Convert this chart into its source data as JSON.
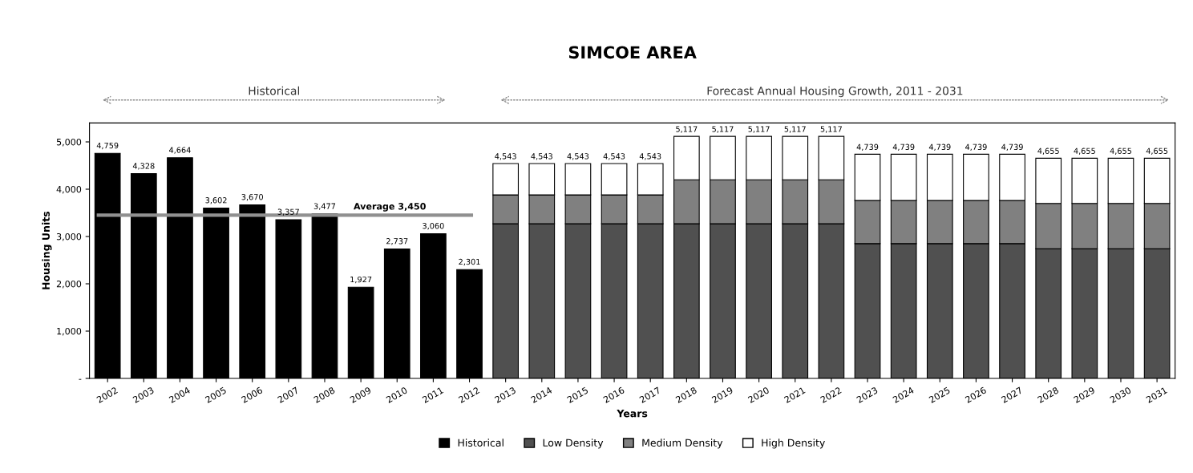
{
  "chart_data": {
    "type": "bar",
    "stacked": true,
    "title": "SIMCOE AREA",
    "xlabel": "Years",
    "ylabel": "Housing Units",
    "categories": [
      "2002",
      "2003",
      "2004",
      "2005",
      "2006",
      "2007",
      "2008",
      "2009",
      "2010",
      "2011",
      "2012",
      "2013",
      "2014",
      "2015",
      "2016",
      "2017",
      "2018",
      "2019",
      "2020",
      "2021",
      "2022",
      "2023",
      "2024",
      "2025",
      "2026",
      "2027",
      "2028",
      "2029",
      "2030",
      "2031"
    ],
    "series": [
      {
        "name": "Historical",
        "color": "#000000",
        "values": [
          4759,
          4328,
          4664,
          3602,
          3670,
          3357,
          3477,
          1927,
          2737,
          3060,
          2301,
          null,
          null,
          null,
          null,
          null,
          null,
          null,
          null,
          null,
          null,
          null,
          null,
          null,
          null,
          null,
          null,
          null,
          null,
          null
        ],
        "value_labels": [
          "4,759",
          "4,328",
          "4,664",
          "3,602",
          "3,670",
          "3,357",
          "3,477",
          "1,927",
          "2,737",
          "3,060",
          "2,301",
          null,
          null,
          null,
          null,
          null,
          null,
          null,
          null,
          null,
          null,
          null,
          null,
          null,
          null,
          null,
          null,
          null,
          null,
          null
        ]
      },
      {
        "name": "Low Density",
        "color": "#505050",
        "values": [
          null,
          null,
          null,
          null,
          null,
          null,
          null,
          null,
          null,
          null,
          null,
          3270,
          3270,
          3270,
          3270,
          3270,
          3270,
          3270,
          3270,
          3270,
          3270,
          2850,
          2850,
          2850,
          2850,
          2850,
          2740,
          2740,
          2740,
          2740
        ]
      },
      {
        "name": "Medium Density",
        "color": "#808080",
        "values": [
          null,
          null,
          null,
          null,
          null,
          null,
          null,
          null,
          null,
          null,
          null,
          610,
          610,
          610,
          610,
          610,
          930,
          930,
          930,
          930,
          930,
          910,
          910,
          910,
          910,
          910,
          960,
          960,
          960,
          960
        ]
      },
      {
        "name": "High Density",
        "color": "#ffffff",
        "values": [
          null,
          null,
          null,
          null,
          null,
          null,
          null,
          null,
          null,
          null,
          null,
          663,
          663,
          663,
          663,
          663,
          917,
          917,
          917,
          917,
          917,
          979,
          979,
          979,
          979,
          979,
          955,
          955,
          955,
          955
        ]
      }
    ],
    "totals": [
      null,
      null,
      null,
      null,
      null,
      null,
      null,
      null,
      null,
      null,
      null,
      "4,543",
      "4,543",
      "4,543",
      "4,543",
      "4,543",
      "5,117",
      "5,117",
      "5,117",
      "5,117",
      "5,117",
      "4,739",
      "4,739",
      "4,739",
      "4,739",
      "4,739",
      "4,655",
      "4,655",
      "4,655",
      "4,655"
    ],
    "ylim": [
      0,
      5400
    ],
    "yticks": [
      {
        "value": 0,
        "label": "-"
      },
      {
        "value": 1000,
        "label": "1,000"
      },
      {
        "value": 2000,
        "label": "2,000"
      },
      {
        "value": 3000,
        "label": "3,000"
      },
      {
        "value": 4000,
        "label": "4,000"
      },
      {
        "value": 5000,
        "label": "5,000"
      }
    ],
    "ref_lines": [
      {
        "axis": "y",
        "value": 3450,
        "label": "Average 3,450",
        "color": "#909090"
      }
    ],
    "annotations": [
      "Historical",
      "Forecast Annual Housing Growth, 2011 - 2031"
    ],
    "legend": "bottom",
    "grid": false
  }
}
